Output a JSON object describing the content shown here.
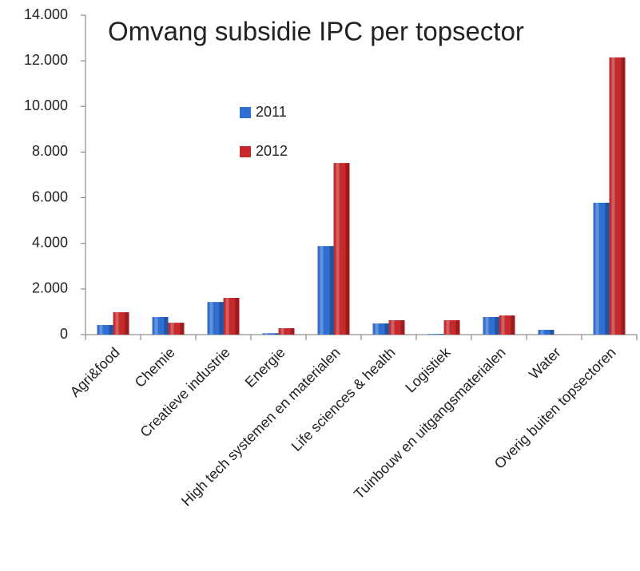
{
  "chart_data": {
    "type": "bar",
    "title": "Omvang subsidie IPC per topsector",
    "categories": [
      "Agri&food",
      "Chemie",
      "Creatieve industrie",
      "Energie",
      "High tech systemen en materialen",
      "Life sciences & health",
      "Logistiek",
      "Tuinbouw en uitgangsmaterialen",
      "Water",
      "Overig buiten topsectoren"
    ],
    "series": [
      {
        "name": "2011",
        "color": "#2f6fd1",
        "values": [
          420,
          770,
          1430,
          60,
          3880,
          490,
          30,
          770,
          210,
          5780
        ]
      },
      {
        "name": "2012",
        "color": "#c62a2c",
        "values": [
          980,
          520,
          1610,
          280,
          7520,
          630,
          630,
          840,
          0,
          12150
        ]
      }
    ],
    "ylim": [
      0,
      14000
    ],
    "yticks": [
      0,
      {
        "value": 2000,
        "label": "2.000"
      },
      {
        "value": 4000,
        "label": "4.000"
      },
      {
        "value": 6000,
        "label": "6.000"
      },
      {
        "value": 8000,
        "label": "8.000"
      },
      {
        "value": 10000,
        "label": "10.000"
      },
      {
        "value": 12000,
        "label": "12.000"
      },
      {
        "value": 14000,
        "label": "14.000"
      }
    ],
    "grid": false
  }
}
